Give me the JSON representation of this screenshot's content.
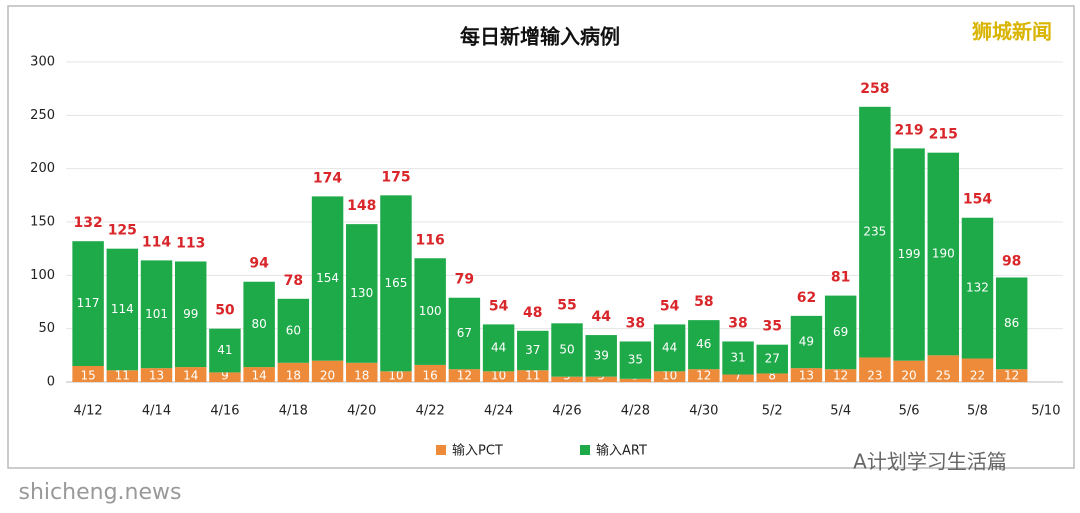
{
  "chart_data": {
    "type": "stacked-bar",
    "title": "每日新增输入病例",
    "categories": [
      "4/12",
      null,
      "4/14",
      null,
      "4/16",
      null,
      "4/18",
      null,
      "4/20",
      null,
      "4/22",
      null,
      "4/24",
      null,
      "4/26",
      null,
      "4/28",
      null,
      "4/30",
      null,
      "5/2",
      null,
      "5/4",
      null,
      "5/6",
      null,
      "5/8",
      null,
      "5/10"
    ],
    "series": [
      {
        "name": "输入PCT",
        "color": "#ed8b3a",
        "values": [
          15,
          11,
          13,
          14,
          9,
          14,
          18,
          20,
          18,
          10,
          16,
          12,
          10,
          11,
          5,
          5,
          3,
          10,
          12,
          7,
          8,
          13,
          12,
          23,
          20,
          25,
          22,
          12,
          null
        ]
      },
      {
        "name": "输入ART",
        "color": "#1faa4a",
        "values": [
          117,
          114,
          101,
          99,
          41,
          80,
          60,
          154,
          130,
          165,
          100,
          67,
          44,
          37,
          50,
          39,
          35,
          44,
          46,
          31,
          27,
          49,
          69,
          235,
          199,
          190,
          132,
          86,
          null
        ]
      }
    ],
    "totals": [
      132,
      125,
      114,
      113,
      50,
      94,
      78,
      174,
      148,
      175,
      116,
      79,
      54,
      48,
      55,
      44,
      38,
      54,
      58,
      38,
      35,
      62,
      81,
      258,
      219,
      215,
      154,
      98,
      null
    ],
    "ylim": [
      0,
      300
    ],
    "yticks": [
      0,
      50,
      100,
      150,
      200,
      250,
      300
    ],
    "grid": true,
    "watermark": "狮城新闻",
    "footer": "A计划学习生活篇",
    "source": "shicheng.news"
  }
}
